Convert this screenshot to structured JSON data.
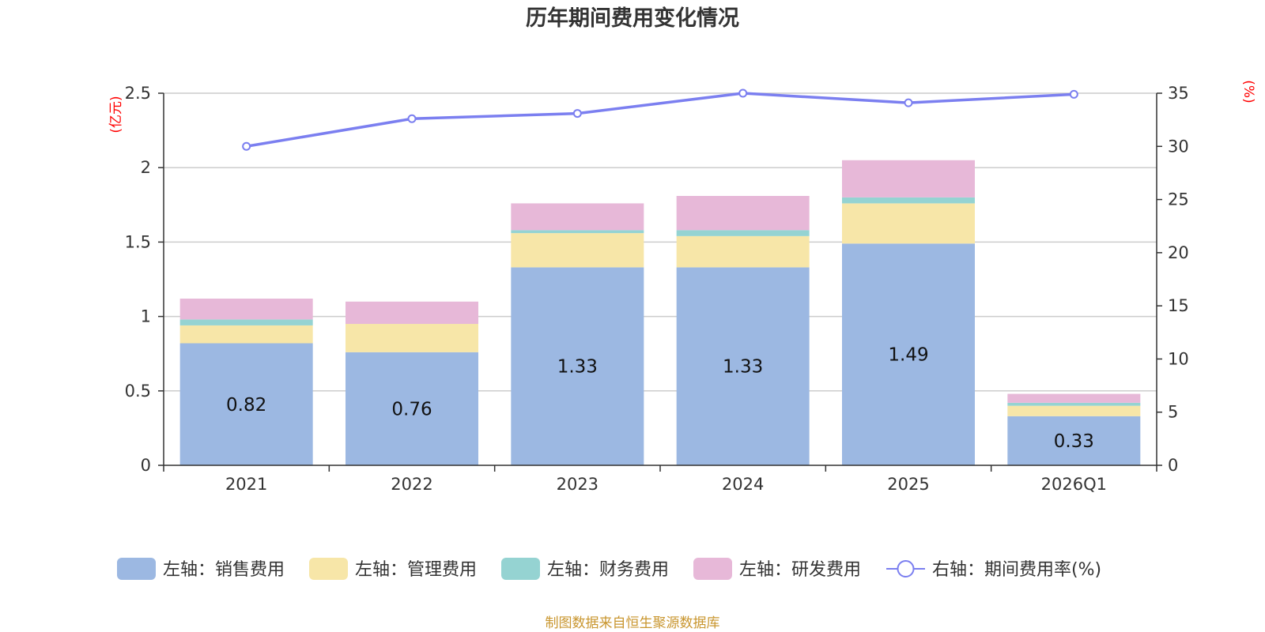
{
  "chart_data": {
    "type": "bar",
    "stacked": true,
    "title": "历年期间费用变化情况",
    "categories": [
      "2021",
      "2022",
      "2023",
      "2024",
      "2025",
      "2026Q1"
    ],
    "left_axis": {
      "unit_label": "(亿元)",
      "ylim": [
        0,
        2.5
      ],
      "ticks": [
        "0",
        "0.5",
        "1",
        "1.5",
        "2",
        "2.5"
      ]
    },
    "right_axis": {
      "unit_label": "(%)",
      "ylim": [
        0,
        35
      ],
      "ticks": [
        "0",
        "5",
        "10",
        "15",
        "20",
        "25",
        "30",
        "35"
      ]
    },
    "series": [
      {
        "name": "左轴：销售费用",
        "axis": "left",
        "kind": "bar",
        "color": "#9cb8e2",
        "values": [
          0.82,
          0.76,
          1.33,
          1.33,
          1.49,
          0.33
        ],
        "labels": [
          "0.82",
          "0.76",
          "1.33",
          "1.33",
          "1.49",
          "0.33"
        ]
      },
      {
        "name": "左轴：管理费用",
        "axis": "left",
        "kind": "bar",
        "color": "#f7e6a8",
        "values": [
          0.12,
          0.19,
          0.23,
          0.21,
          0.27,
          0.07
        ]
      },
      {
        "name": "左轴：财务费用",
        "axis": "left",
        "kind": "bar",
        "color": "#95d3d2",
        "values": [
          0.04,
          0.0,
          0.02,
          0.04,
          0.04,
          0.02
        ]
      },
      {
        "name": "左轴：研发费用",
        "axis": "left",
        "kind": "bar",
        "color": "#e7b8d8",
        "values": [
          0.14,
          0.15,
          0.18,
          0.23,
          0.25,
          0.06
        ]
      },
      {
        "name": "右轴：期间费用率(%)",
        "axis": "right",
        "kind": "line",
        "color": "#7b7ff0",
        "values": [
          30.0,
          32.6,
          33.1,
          35.0,
          34.1,
          34.9
        ]
      }
    ],
    "source": "制图数据来自恒生聚源数据库"
  }
}
